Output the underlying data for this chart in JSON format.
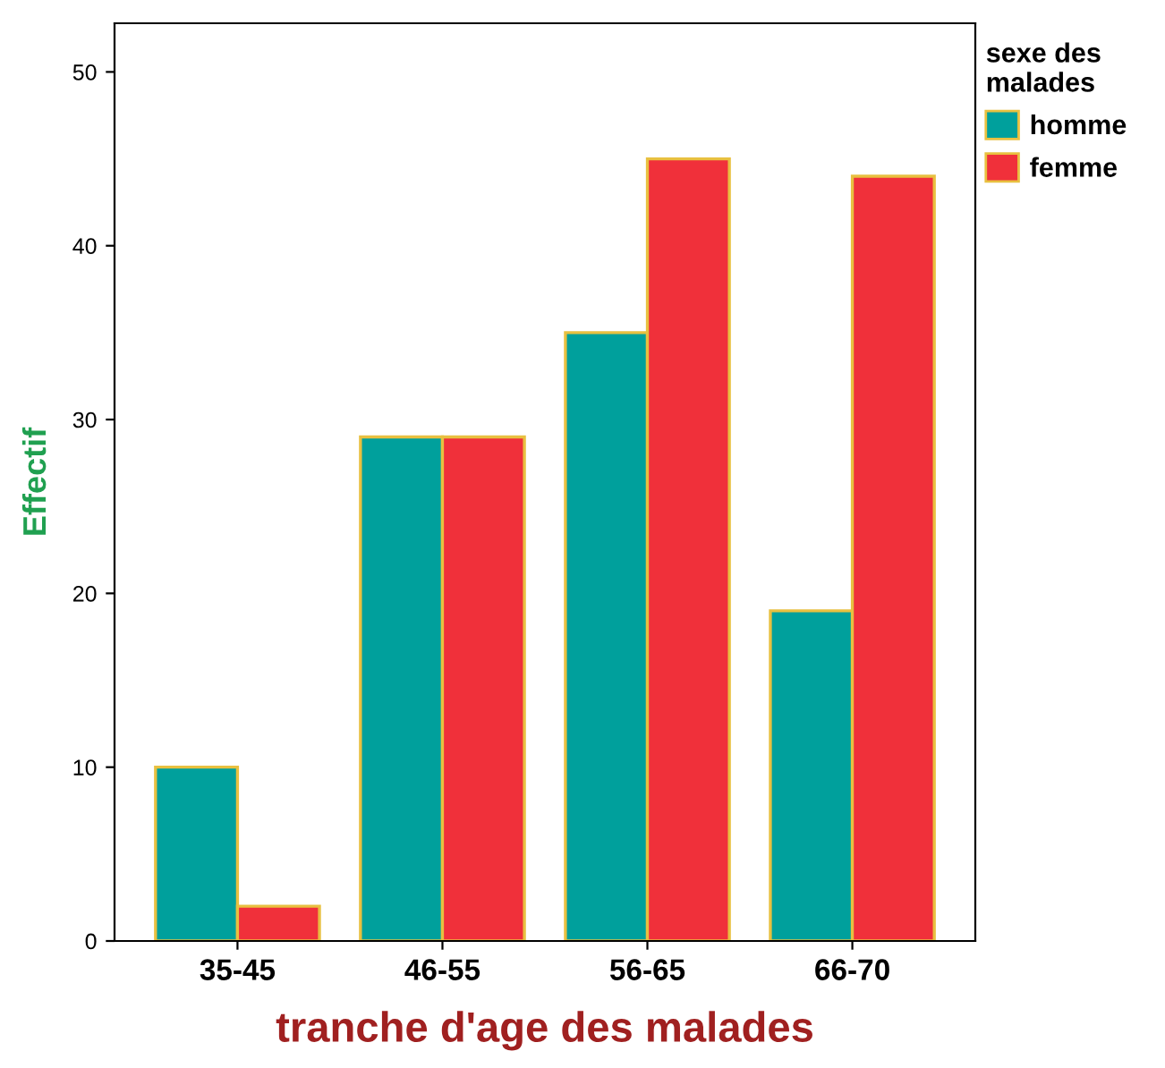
{
  "chart_data": {
    "type": "bar",
    "xlabel": "tranche d'age des malades",
    "ylabel": "Effectif",
    "legend_title": "sexe des\nmalades",
    "categories": [
      "35-45",
      "46-55",
      "56-65",
      "66-70"
    ],
    "series": [
      {
        "name": "homme",
        "color": "#00a09c",
        "values": [
          10,
          29,
          35,
          19
        ]
      },
      {
        "name": "femme",
        "color": "#f0303a",
        "values": [
          2,
          29,
          45,
          44
        ]
      }
    ],
    "ylim": [
      0,
      52.8
    ],
    "yticks": [
      0,
      10,
      20,
      30,
      40,
      50
    ],
    "grid": false,
    "legend": "top right"
  }
}
